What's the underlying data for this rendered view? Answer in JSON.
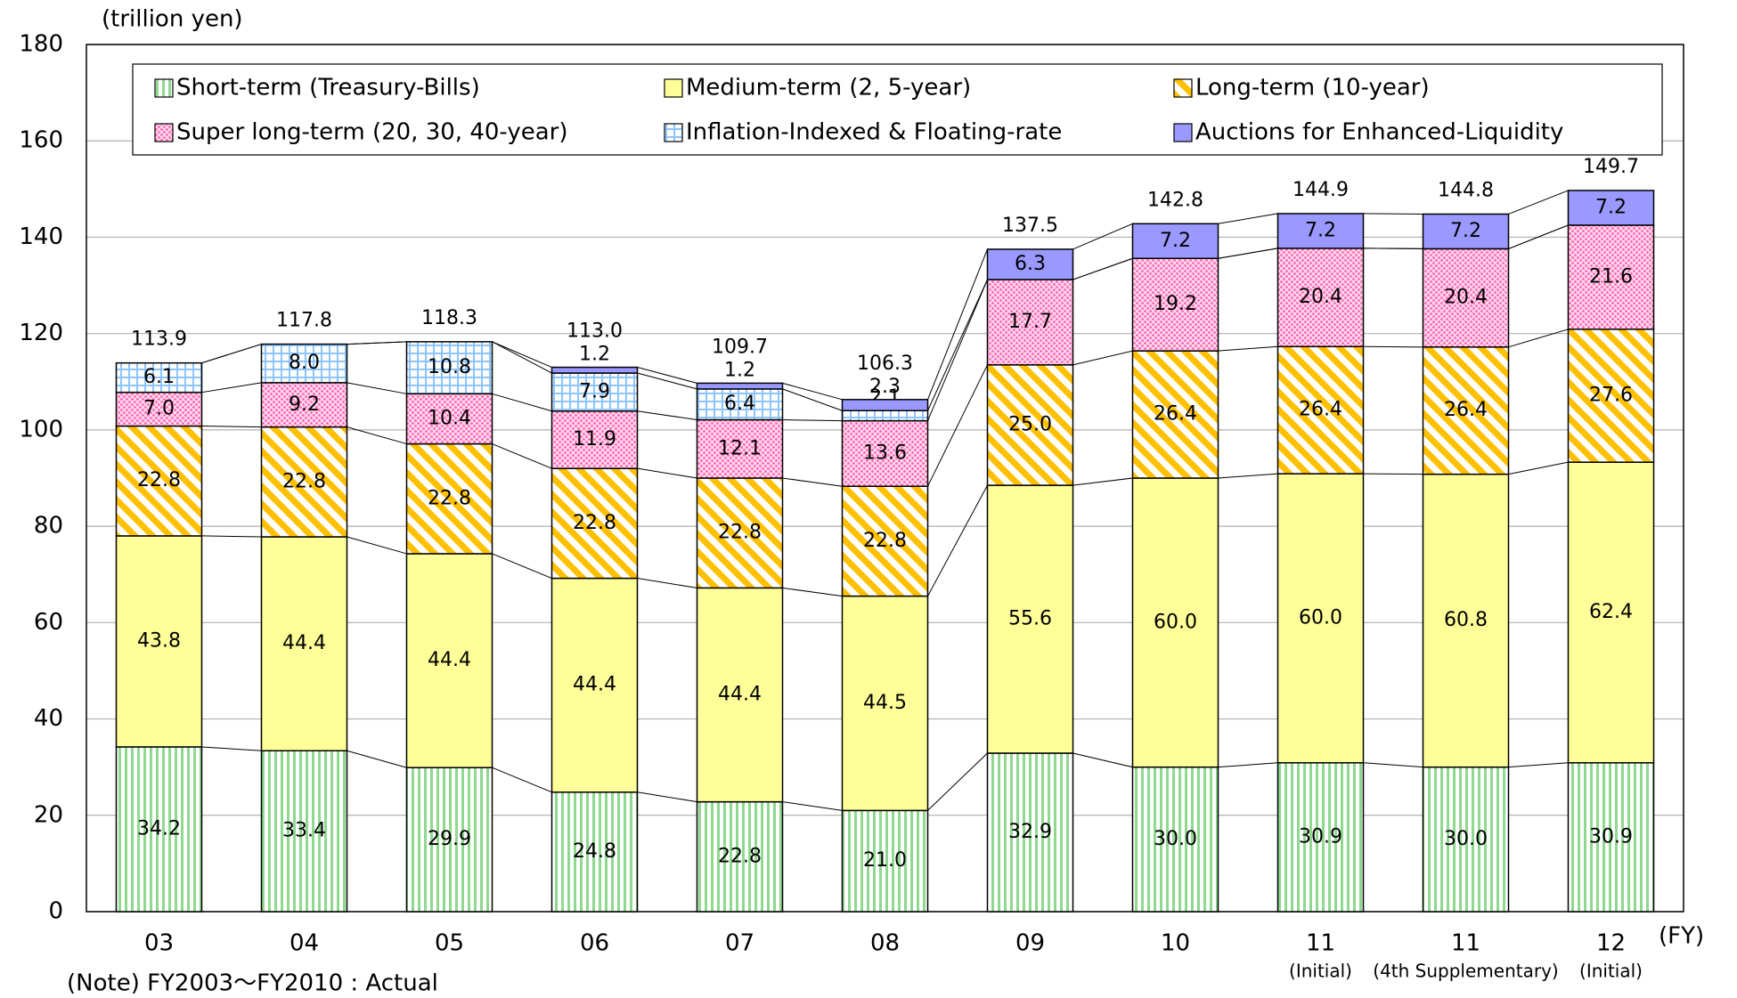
{
  "chart_data": {
    "type": "stacked-bar",
    "unit_label": "(trillion yen)",
    "x_unit_label": "(FY)",
    "note": "(Note) FY2003～FY2010 : Actual",
    "categories": [
      "03",
      "04",
      "05",
      "06",
      "07",
      "08",
      "09",
      "10",
      "11",
      "11",
      "12"
    ],
    "sublabels": [
      null,
      null,
      null,
      null,
      null,
      null,
      null,
      null,
      "(Initial)",
      "(4th Supplementary)",
      "(Initial)"
    ],
    "series": [
      {
        "name": "Short-term (Treasury-Bills)",
        "color": "#8fd98f",
        "values": [
          34.2,
          33.4,
          29.9,
          24.8,
          22.8,
          21.0,
          32.9,
          30.0,
          30.9,
          30.0,
          30.9
        ],
        "value_labels": [
          "34.2",
          "33.4",
          "29.9",
          "24.8",
          "22.8",
          "21.0",
          "32.9",
          "30.0",
          "30.9",
          "30.0",
          "30.9"
        ]
      },
      {
        "name": "Medium-term (2, 5-year)",
        "color": "#ffff99",
        "values": [
          43.8,
          44.4,
          44.4,
          44.4,
          44.4,
          44.5,
          55.6,
          60.0,
          60.0,
          60.8,
          62.4
        ],
        "value_labels": [
          "43.8",
          "44.4",
          "44.4",
          "44.4",
          "44.4",
          "44.5",
          "55.6",
          "60.0",
          "60.0",
          "60.8",
          "62.4"
        ]
      },
      {
        "name": "Long-term (10-year)",
        "color": "#ffc000",
        "values": [
          22.8,
          22.8,
          22.8,
          22.8,
          22.8,
          22.8,
          25.0,
          26.4,
          26.4,
          26.4,
          27.6
        ],
        "value_labels": [
          "22.8",
          "22.8",
          "22.8",
          "22.8",
          "22.8",
          "22.8",
          "25.0",
          "26.4",
          "26.4",
          "26.4",
          "27.6"
        ]
      },
      {
        "name": "Super long-term (20, 30, 40-year)",
        "color": "#ff66b3",
        "values": [
          7.0,
          9.2,
          10.4,
          11.9,
          12.1,
          13.6,
          17.7,
          19.2,
          20.4,
          20.4,
          21.6
        ],
        "value_labels": [
          "7.0",
          "9.2",
          "10.4",
          "11.9",
          "12.1",
          "13.6",
          "17.7",
          "19.2",
          "20.4",
          "20.4",
          "21.6"
        ]
      },
      {
        "name": "Inflation-Indexed & Floating-rate",
        "color": "#8cc4ff",
        "values": [
          6.1,
          8.0,
          10.8,
          7.9,
          6.4,
          2.1,
          null,
          null,
          null,
          null,
          null
        ],
        "value_labels": [
          "6.1",
          "8.0",
          "10.8",
          "7.9",
          "6.4",
          "2.1",
          null,
          null,
          null,
          null,
          null
        ]
      },
      {
        "name": "Auctions for Enhanced-Liquidity",
        "color": "#9999ff",
        "values": [
          null,
          null,
          null,
          1.2,
          1.2,
          2.3,
          6.3,
          7.2,
          7.2,
          7.2,
          7.2
        ],
        "value_labels": [
          null,
          null,
          null,
          "1.2",
          "1.2",
          "2.3",
          "6.3",
          "7.2",
          "7.2",
          "7.2",
          "7.2"
        ]
      }
    ],
    "totals": [
      113.9,
      117.8,
      118.3,
      113.0,
      109.7,
      106.3,
      137.5,
      142.8,
      144.9,
      144.8,
      149.7
    ],
    "total_labels": [
      "113.9",
      "117.8",
      "118.3",
      "113.0",
      "109.7",
      "106.3",
      "137.5",
      "142.8",
      "144.9",
      "144.8",
      "149.7"
    ],
    "ylim": [
      0,
      180
    ],
    "yticks": [
      0,
      20,
      40,
      60,
      80,
      100,
      120,
      140,
      160,
      180
    ],
    "grid": true
  }
}
